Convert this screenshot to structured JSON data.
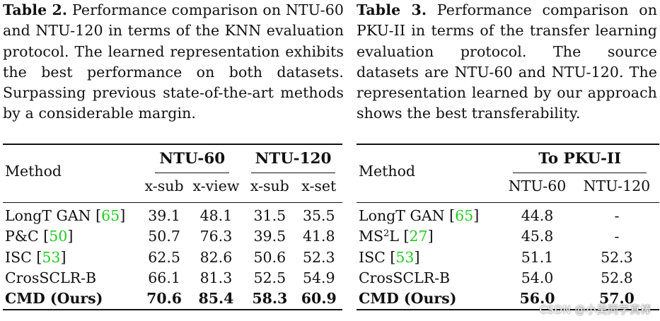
{
  "table2": {
    "caption_label": "Table 2.",
    "caption_text": " Performance comparison on NTU-60 and NTU-120 in terms of the KNN evaluation protocol. The learned representation exhibits the best performance on both datasets. Surpassing previous state-of-the-art methods by a considerable margin.",
    "method_header": "Method",
    "groups": [
      "NTU-60",
      "NTU-120"
    ],
    "subheaders": [
      "x-sub",
      "x-view",
      "x-sub",
      "x-set"
    ],
    "rows": [
      {
        "method": "LongT GAN ",
        "cite": "65",
        "values": [
          "39.1",
          "48.1",
          "31.5",
          "35.5"
        ]
      },
      {
        "method": "P&C ",
        "cite": "50",
        "values": [
          "50.7",
          "76.3",
          "39.5",
          "41.8"
        ]
      },
      {
        "method": "ISC ",
        "cite": "53",
        "values": [
          "62.5",
          "82.6",
          "50.6",
          "52.3"
        ]
      },
      {
        "method": "CrosSCLR-B",
        "cite": "",
        "values": [
          "66.1",
          "81.3",
          "52.5",
          "54.9"
        ]
      }
    ],
    "best_row": {
      "method": "CMD (Ours)",
      "values": [
        "70.6",
        "85.4",
        "58.3",
        "60.9"
      ]
    }
  },
  "table3": {
    "caption_label": "Table 3.",
    "caption_text": " Performance comparison on PKU-II in terms of the transfer learning evaluation protocol. The source datasets are NTU-60 and NTU-120. The representation learned by our approach shows the best transferability.",
    "method_header": "Method",
    "group": "To PKU-II",
    "subheaders": [
      "NTU-60",
      "NTU-120"
    ],
    "rows": [
      {
        "method": "LongT GAN ",
        "sup": "",
        "cite": "65",
        "values": [
          "44.8",
          "-"
        ]
      },
      {
        "method": "MS",
        "sup": "2",
        "method_tail": "L ",
        "cite": "27",
        "values": [
          "45.8",
          "-"
        ]
      },
      {
        "method": "ISC ",
        "sup": "",
        "cite": "53",
        "values": [
          "51.1",
          "52.3"
        ]
      },
      {
        "method": "CrosSCLR-B",
        "sup": "",
        "cite": "",
        "values": [
          "54.0",
          "52.8"
        ]
      }
    ],
    "best_row": {
      "method": "CMD (Ours)",
      "values": [
        "56.0",
        "57.0"
      ]
    }
  },
  "watermark": "CSDN @小吴同学真棒",
  "colors": {
    "citation": "#22cc22",
    "text": "#111111"
  }
}
